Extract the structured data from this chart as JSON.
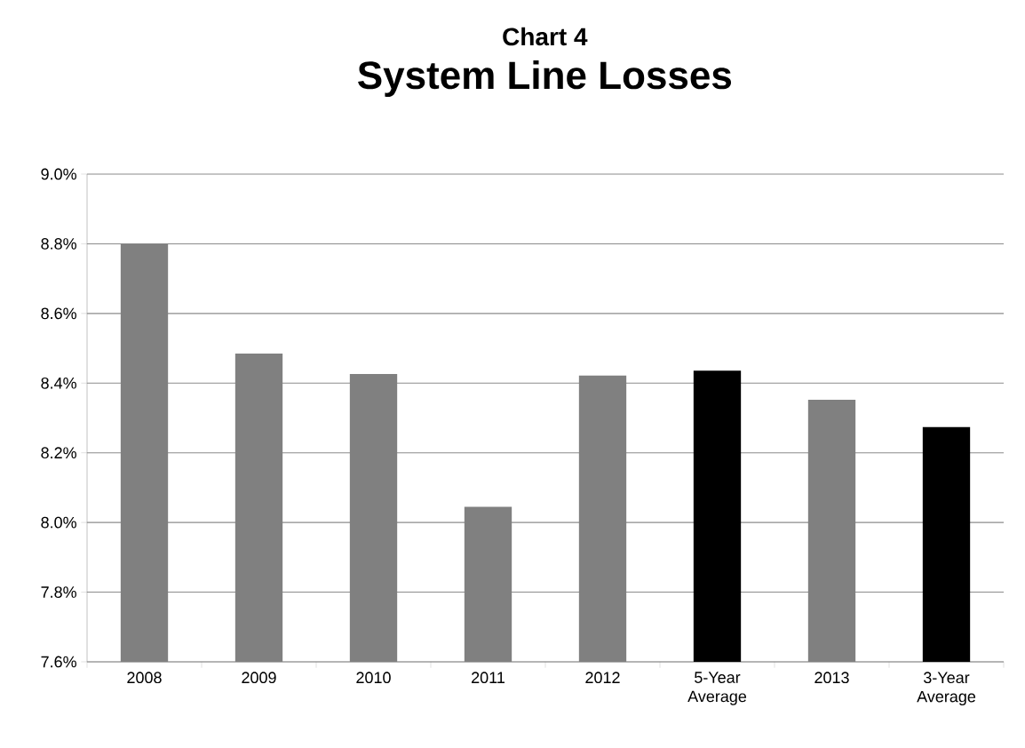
{
  "chart_data": {
    "type": "bar",
    "title": "Chart 4",
    "subtitle": "System Line Losses",
    "categories": [
      "2008",
      "2009",
      "2010",
      "2011",
      "2012",
      "5-Year Average",
      "2013",
      "3-Year Average"
    ],
    "values": [
      8.8,
      8.485,
      8.426,
      8.045,
      8.422,
      8.436,
      8.352,
      8.274
    ],
    "colors": [
      "#808080",
      "#808080",
      "#808080",
      "#808080",
      "#808080",
      "#000000",
      "#808080",
      "#000000"
    ],
    "ylim": [
      7.6,
      9.0
    ],
    "yticks": [
      {
        "value": 7.6,
        "label": "7.6%"
      },
      {
        "value": 7.8,
        "label": "7.8%"
      },
      {
        "value": 8.0,
        "label": "8.0%"
      },
      {
        "value": 8.2,
        "label": "8.2%"
      },
      {
        "value": 8.4,
        "label": "8.4%"
      },
      {
        "value": 8.6,
        "label": "8.6%"
      },
      {
        "value": 8.8,
        "label": "8.8%"
      },
      {
        "value": 9.0,
        "label": "9.0%"
      }
    ],
    "grid": "y"
  }
}
